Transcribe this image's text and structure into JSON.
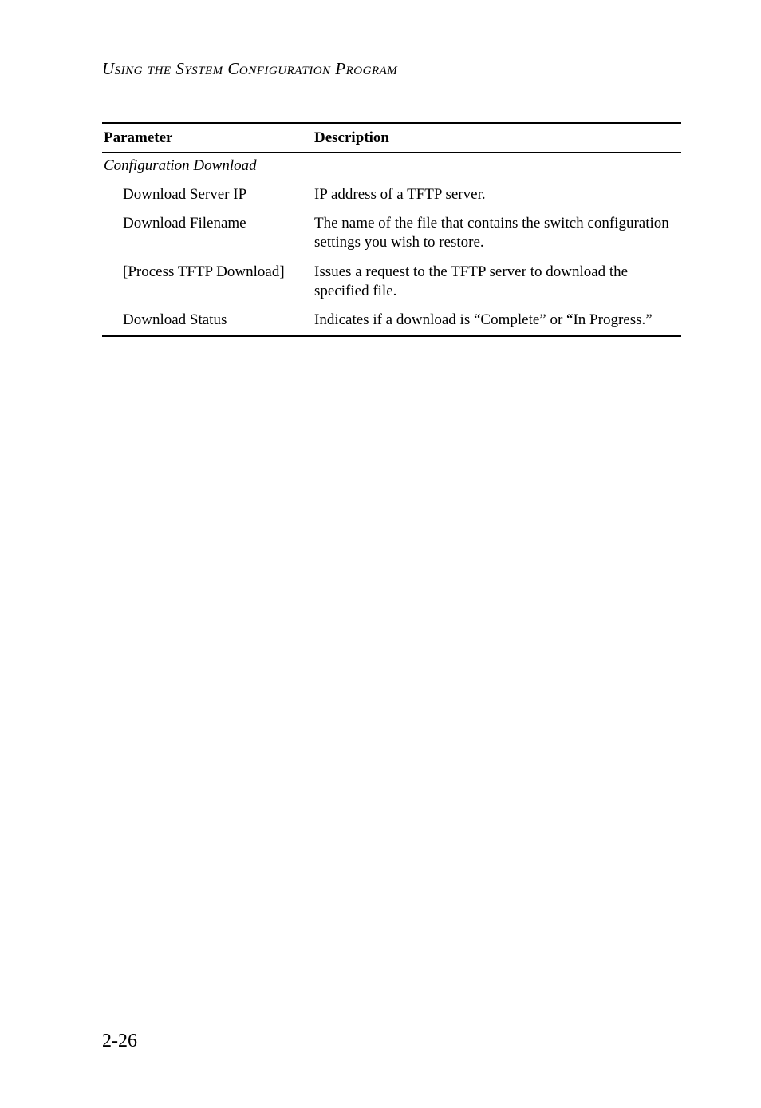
{
  "running_head": "Using the System Configuration Program",
  "table": {
    "headers": {
      "param": "Parameter",
      "desc": "Description"
    },
    "section": "Configuration Download",
    "rows": [
      {
        "param": "Download Server IP",
        "desc": "IP address of a TFTP server."
      },
      {
        "param": "Download Filename",
        "desc": "The name of the file that contains the switch configuration settings you wish to restore."
      },
      {
        "param": "[Process TFTP Download]",
        "desc": "Issues a request to the TFTP server to download the specified file."
      },
      {
        "param": "Download Status",
        "desc": "Indicates if a download is “Complete” or “In Progress.”"
      }
    ]
  },
  "page_number": "2-26"
}
